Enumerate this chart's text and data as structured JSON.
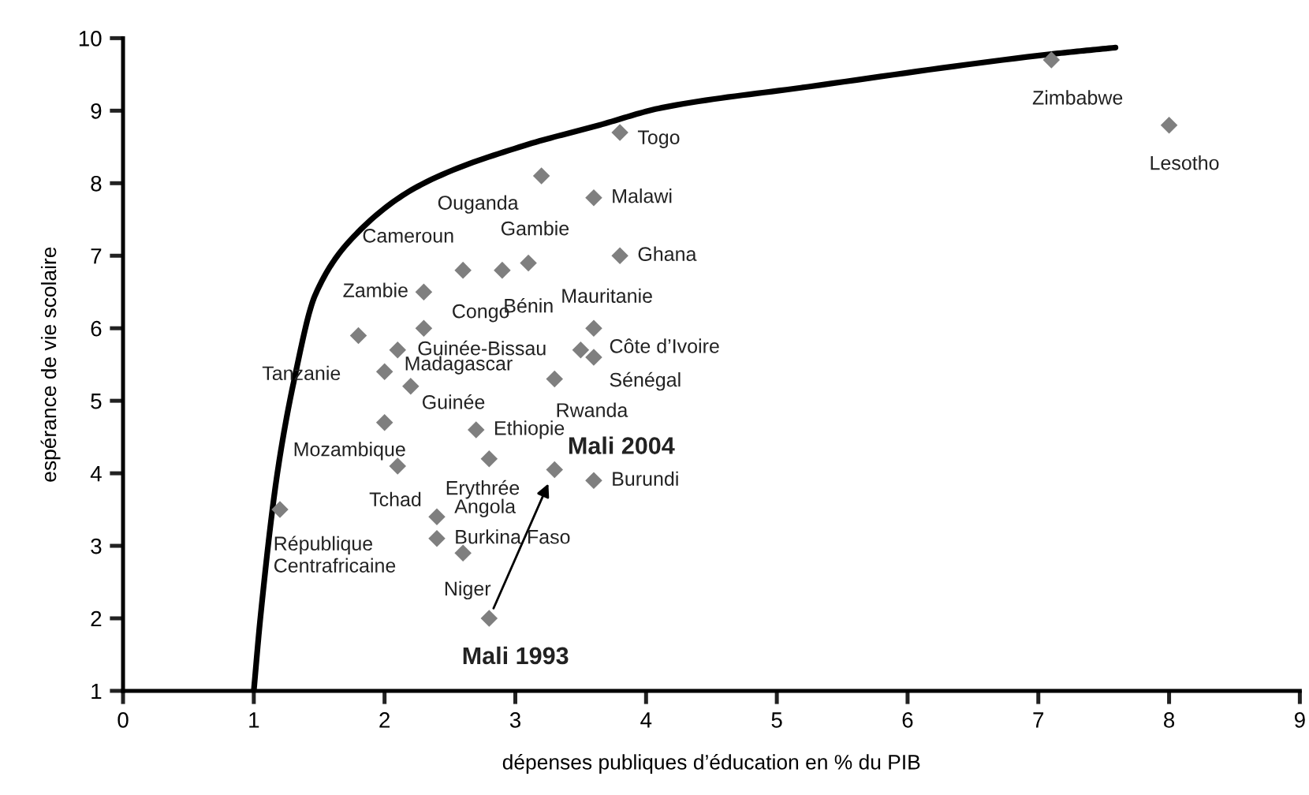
{
  "chart_data": {
    "type": "scatter",
    "xlabel": "dépenses publiques d’éducation en % du PIB",
    "ylabel": "espérance de vie scolaire",
    "xlim": [
      0,
      9
    ],
    "ylim": [
      1,
      10
    ],
    "xticks": [
      0,
      1,
      2,
      3,
      4,
      5,
      6,
      7,
      8,
      9
    ],
    "yticks": [
      1,
      2,
      3,
      4,
      5,
      6,
      7,
      8,
      9,
      10
    ],
    "grid": false,
    "legend": false,
    "marker": "diamond",
    "series": [
      {
        "color": "#7f7f7f",
        "x": [
          3.8,
          3.2,
          3.6,
          3.8,
          2.6,
          2.9,
          3.1,
          2.3,
          2.3,
          1.8,
          2.1,
          2.0,
          2.2,
          3.6,
          3.5,
          3.6,
          3.3,
          2.0,
          2.7,
          2.8,
          3.6,
          2.1,
          1.2,
          2.4,
          2.4,
          2.6,
          7.1,
          8.0
        ],
        "values": [
          8.7,
          8.1,
          7.8,
          7.0,
          6.8,
          6.8,
          6.9,
          6.5,
          6.0,
          5.9,
          5.7,
          5.4,
          5.2,
          6.0,
          5.7,
          5.6,
          5.3,
          4.7,
          4.6,
          4.2,
          3.9,
          4.1,
          3.5,
          3.4,
          3.1,
          2.9,
          9.7,
          8.8
        ]
      },
      {
        "color": "#7f7f7f",
        "x": [
          2.8,
          3.3
        ],
        "values": [
          2.0,
          4.05
        ]
      },
      {
        "type": "line",
        "color": "#000000",
        "marker": "none",
        "line_style": "solid",
        "x": [
          1.0,
          1.05,
          1.18,
          1.31,
          1.47,
          1.8,
          2.28,
          3.07,
          3.64,
          4.12,
          5.24,
          7.1,
          7.59
        ],
        "values": [
          1.0,
          2.0,
          4.0,
          5.3,
          6.46,
          7.33,
          7.98,
          8.52,
          8.8,
          9.04,
          9.33,
          9.78,
          9.87
        ]
      }
    ],
    "annotations": [
      {
        "text": "Togo",
        "x": 3.8,
        "y": 8.7
      },
      {
        "text": "Ouganda",
        "x": 3.2,
        "y": 8.1
      },
      {
        "text": "Malawi",
        "x": 3.6,
        "y": 7.8
      },
      {
        "text": "Ghana",
        "x": 3.8,
        "y": 7.0
      },
      {
        "text": "Cameroun",
        "x": 2.6,
        "y": 6.8
      },
      {
        "text": "Bénin",
        "x": 2.9,
        "y": 6.8
      },
      {
        "text": "Gambie",
        "x": 3.1,
        "y": 6.9
      },
      {
        "text": "Zambie",
        "x": 2.3,
        "y": 6.5
      },
      {
        "text": "Congo",
        "x": 2.3,
        "y": 6.0
      },
      {
        "text": "Tanzanie",
        "x": 1.8,
        "y": 5.9
      },
      {
        "text": "Guinée-Bissau",
        "x": 2.1,
        "y": 5.7
      },
      {
        "text": "Madagascar",
        "x": 2.0,
        "y": 5.4
      },
      {
        "text": "Guinée",
        "x": 2.2,
        "y": 5.2
      },
      {
        "text": "Mauritanie",
        "x": 3.6,
        "y": 6.0
      },
      {
        "text": "Côte d’Ivoire",
        "x": 3.5,
        "y": 5.7
      },
      {
        "text": "Sénégal",
        "x": 3.6,
        "y": 5.6
      },
      {
        "text": "Rwanda",
        "x": 3.3,
        "y": 5.3
      },
      {
        "text": "Mozambique",
        "x": 2.0,
        "y": 4.7
      },
      {
        "text": "Ethiopie",
        "x": 2.7,
        "y": 4.6
      },
      {
        "text": "Erythrée",
        "x": 2.8,
        "y": 4.2
      },
      {
        "text": "Mali 2004",
        "x": 3.3,
        "y": 4.05
      },
      {
        "text": "Burundi",
        "x": 3.6,
        "y": 3.9
      },
      {
        "text": "Tchad",
        "x": 2.1,
        "y": 4.1
      },
      {
        "text": "République\nCentrafricaine",
        "x": 1.2,
        "y": 3.5
      },
      {
        "text": "Angola",
        "x": 2.4,
        "y": 3.4
      },
      {
        "text": "Burkina Faso",
        "x": 2.4,
        "y": 3.1
      },
      {
        "text": "Niger",
        "x": 2.6,
        "y": 2.9
      },
      {
        "text": "Mali 1993",
        "x": 2.8,
        "y": 2.0
      },
      {
        "text": "Zimbabwe",
        "x": 7.1,
        "y": 9.7
      },
      {
        "text": "Lesotho",
        "x": 8.0,
        "y": 8.8
      }
    ]
  }
}
